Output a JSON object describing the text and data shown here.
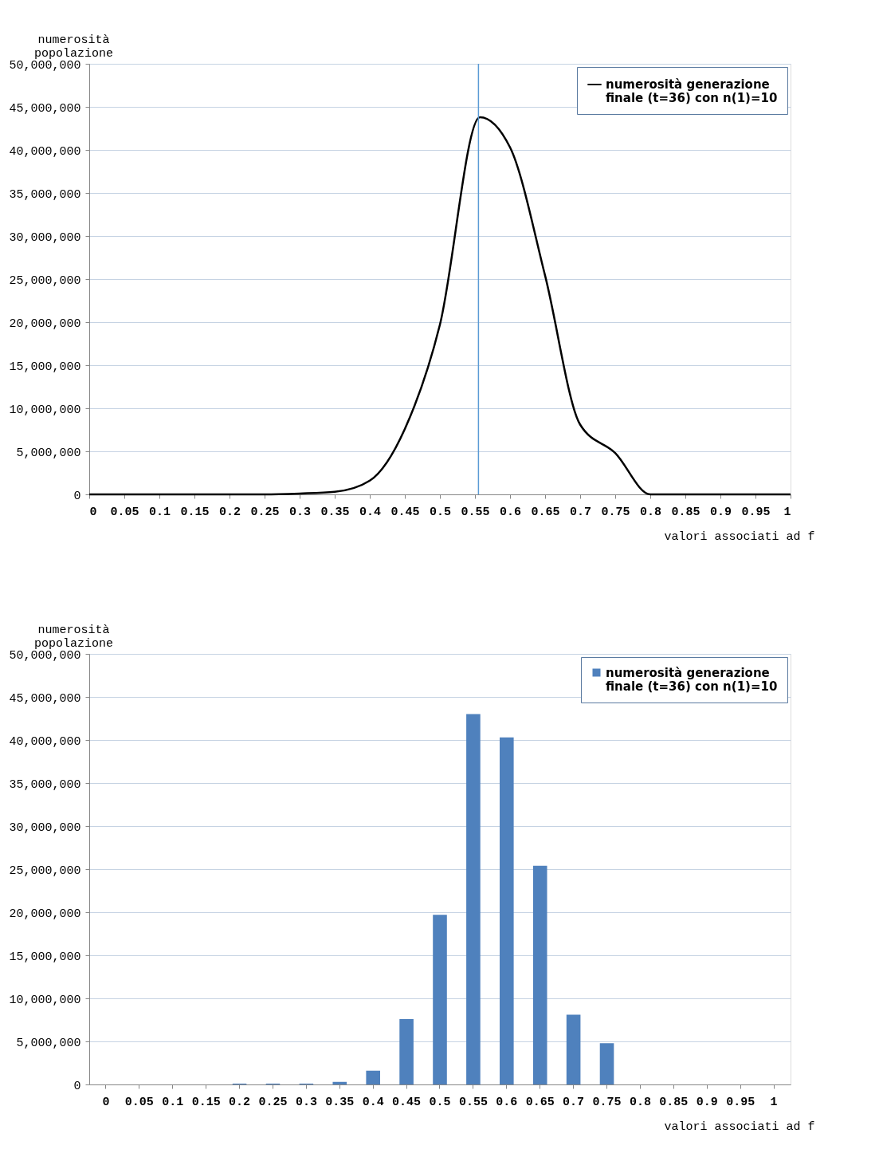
{
  "chart_data": [
    {
      "type": "line",
      "ylabel": "numerosità popolazione",
      "xlabel": "valori associati ad f",
      "xlim": [
        0,
        1
      ],
      "xticks": [
        0,
        0.05,
        0.1,
        0.15,
        0.2,
        0.25,
        0.3,
        0.35,
        0.4,
        0.45,
        0.5,
        0.55,
        0.6,
        0.65,
        0.7,
        0.75,
        0.8,
        0.85,
        0.9,
        0.95,
        1
      ],
      "ylim": [
        0,
        50000000
      ],
      "yticks": [
        0,
        {
          "value": 5000000,
          "label": "5,000,000"
        },
        {
          "value": 10000000,
          "label": "10,000,000"
        },
        {
          "value": 15000000,
          "label": "15,000,000"
        },
        {
          "value": 20000000,
          "label": "20,000,000"
        },
        {
          "value": 25000000,
          "label": "25,000,000"
        },
        {
          "value": 30000000,
          "label": "30,000,000"
        },
        {
          "value": 35000000,
          "label": "35,000,000"
        },
        {
          "value": 40000000,
          "label": "40,000,000"
        },
        {
          "value": 45000000,
          "label": "45,000,000"
        },
        {
          "value": 50000000,
          "label": "50,000,000"
        }
      ],
      "grid": "y",
      "legend": "top right",
      "line_style": "solid",
      "series": [
        {
          "name": "numerosità generazione finale (t=36) con n(1)=10",
          "color": "#000000",
          "x": [
            0,
            0.05,
            0.1,
            0.15,
            0.2,
            0.25,
            0.3,
            0.35,
            0.4,
            0.45,
            0.5,
            0.557,
            0.6,
            0.65,
            0.7,
            0.75,
            0.8,
            0.85,
            0.9,
            0.95,
            1
          ],
          "values": [
            0,
            0,
            0,
            0,
            0,
            0,
            100000,
            300000,
            1600000,
            7600000,
            19700000,
            43800000,
            40300000,
            25400000,
            8100000,
            4800000,
            0,
            0,
            0,
            0,
            0
          ]
        }
      ],
      "ref_lines": [
        {
          "axis": "x",
          "value": 0.555,
          "color": "#5b9bd5"
        }
      ]
    },
    {
      "type": "bar",
      "ylabel": "numerosità popolazione",
      "xlabel": "valori associati ad f",
      "categories": [
        "0",
        "0.05",
        "0.1",
        "0.15",
        "0.2",
        "0.25",
        "0.3",
        "0.35",
        "0.4",
        "0.45",
        "0.5",
        "0.55",
        "0.6",
        "0.65",
        "0.7",
        "0.75",
        "0.8",
        "0.85",
        "0.9",
        "0.95",
        "1"
      ],
      "ylim": [
        0,
        50000000
      ],
      "yticks": [
        0,
        {
          "value": 5000000,
          "label": "5,000,000"
        },
        {
          "value": 10000000,
          "label": "10,000,000"
        },
        {
          "value": 15000000,
          "label": "15,000,000"
        },
        {
          "value": 20000000,
          "label": "20,000,000"
        },
        {
          "value": 25000000,
          "label": "25,000,000"
        },
        {
          "value": 30000000,
          "label": "30,000,000"
        },
        {
          "value": 35000000,
          "label": "35,000,000"
        },
        {
          "value": 40000000,
          "label": "40,000,000"
        },
        {
          "value": 45000000,
          "label": "45,000,000"
        },
        {
          "value": 50000000,
          "label": "50,000,000"
        }
      ],
      "grid": "y",
      "legend": "top right",
      "series": [
        {
          "name": "numerosità generazione finale (t=36) con n(1)=10",
          "color": "#4f81bd",
          "values": [
            0,
            0,
            0,
            0,
            100000,
            100000,
            100000,
            300000,
            1600000,
            7600000,
            19700000,
            43000000,
            40300000,
            25400000,
            8100000,
            4800000,
            0,
            0,
            0,
            0,
            0
          ]
        }
      ]
    }
  ]
}
